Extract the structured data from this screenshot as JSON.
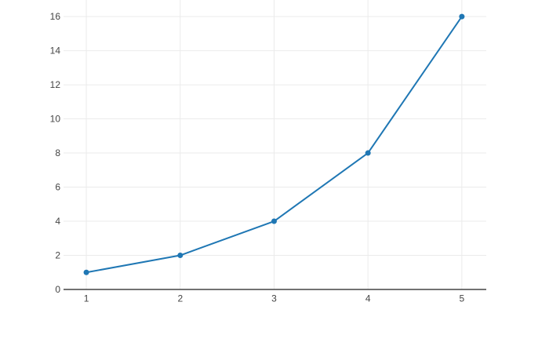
{
  "chart_data": {
    "type": "line",
    "title": "",
    "xlabel": "",
    "ylabel": "",
    "series": [
      {
        "name": "trace-0",
        "mode": "lines+markers",
        "x": [
          1,
          2,
          3,
          4,
          5
        ],
        "y": [
          1,
          2,
          4,
          8,
          16
        ]
      }
    ],
    "x_tick_labels": [
      "1",
      "2",
      "3",
      "4",
      "5"
    ],
    "x_tick_values": [
      1,
      2,
      3,
      4,
      5
    ],
    "y_tick_labels": [
      "0",
      "2",
      "4",
      "6",
      "8",
      "10",
      "12",
      "14",
      "16"
    ],
    "y_tick_values": [
      0,
      2,
      4,
      6,
      8,
      10,
      12,
      14,
      16
    ],
    "xlim": [
      0.757,
      5.26
    ],
    "ylim": [
      0,
      16.97
    ],
    "grid": true,
    "legend": false,
    "colors": {
      "line": "#1f77b4",
      "marker": "#1f77b4",
      "grid": "#ebebeb",
      "axis_line": "#444444",
      "tick_label": "#444444",
      "background": "#ffffff"
    },
    "tick_font_size": 12,
    "line_width": 2,
    "marker_radius": 3.5
  }
}
